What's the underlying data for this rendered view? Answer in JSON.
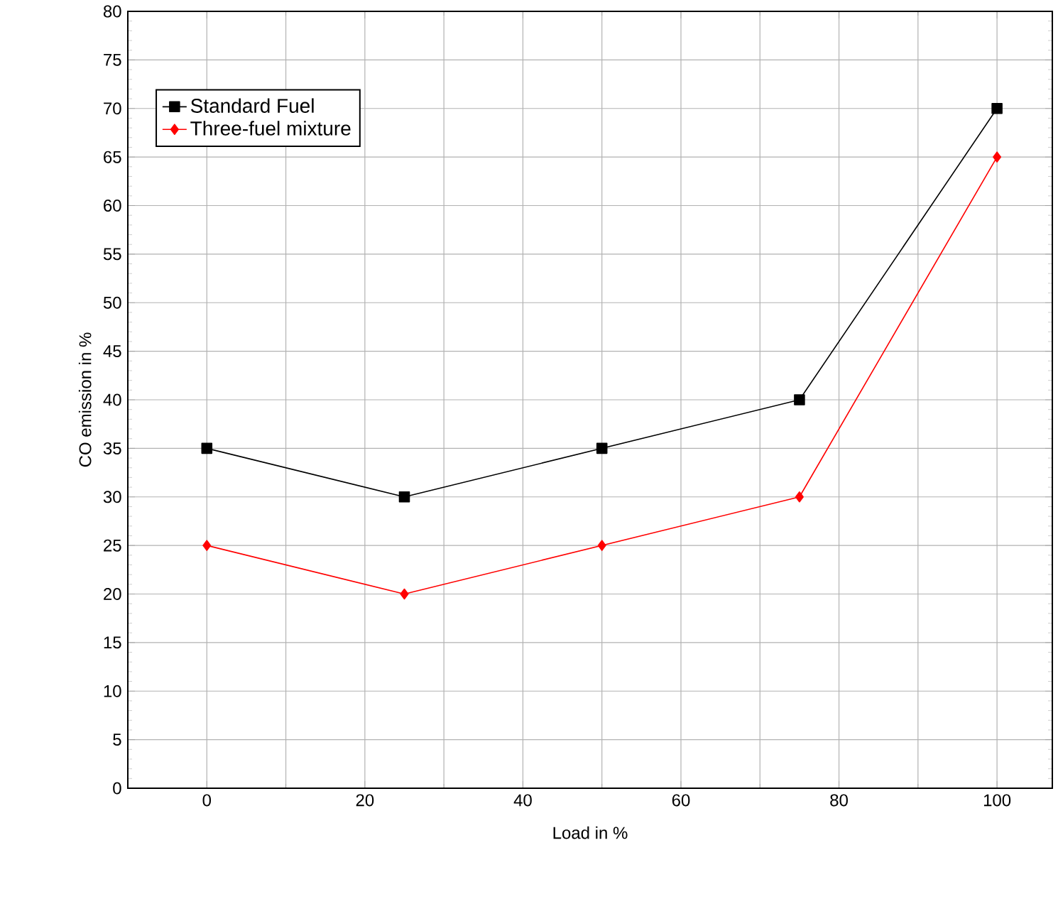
{
  "chart_data": {
    "type": "line",
    "xlabel": "Load in %",
    "ylabel": "CO emission in %",
    "x": [
      0,
      25,
      50,
      75,
      100
    ],
    "series": [
      {
        "name": "Standard Fuel",
        "color": "#000000",
        "marker": "square",
        "values": [
          35,
          30,
          35,
          40,
          70
        ]
      },
      {
        "name": "Three-fuel mixture",
        "color": "#ff0000",
        "marker": "diamond",
        "values": [
          25,
          20,
          25,
          30,
          65
        ]
      }
    ],
    "xlim": [
      -10,
      107
    ],
    "ylim": [
      0,
      80
    ],
    "xticks": [
      0,
      20,
      40,
      60,
      80,
      100
    ],
    "yticks": [
      0,
      5,
      10,
      15,
      20,
      25,
      30,
      35,
      40,
      45,
      50,
      55,
      60,
      65,
      70,
      75,
      80
    ],
    "grid": true,
    "legend": "top left",
    "line_style": "solid"
  }
}
